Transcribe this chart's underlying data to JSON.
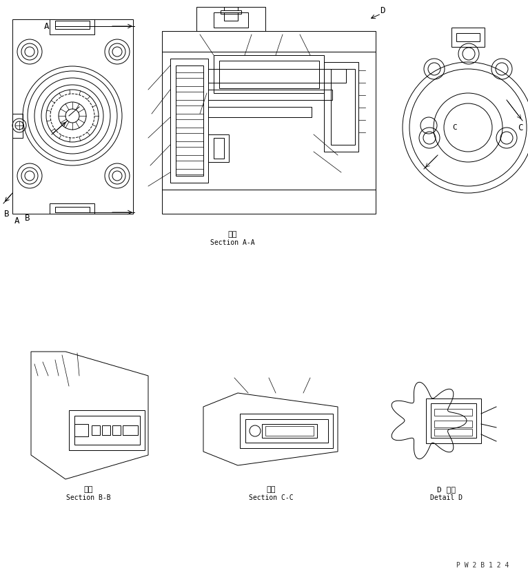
{
  "bg_color": "#ffffff",
  "line_color": "#000000",
  "fig_width": 7.66,
  "fig_height": 8.34,
  "dpi": 100,
  "label_aa_jp": "断面",
  "label_aa_en": "Section A-A",
  "label_bb_jp": "断面",
  "label_bb_en": "Section B-B",
  "label_cc_jp": "断面",
  "label_cc_en": "Section C-C",
  "label_dd_jp": "D 詳細",
  "label_dd_en": "Detail D",
  "watermark": "P W 2 B 1 2 4"
}
